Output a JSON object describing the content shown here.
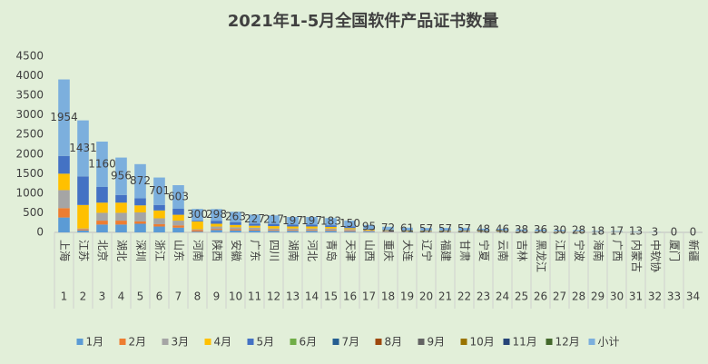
{
  "chart_data": {
    "type": "stacked_bar",
    "title": "2021年1-5月全国软件产品证书数量",
    "categories": [
      "上海",
      "江苏",
      "北京",
      "湖北",
      "深圳",
      "浙江",
      "山东",
      "河南",
      "陕西",
      "安徽",
      "广东",
      "四川",
      "湖南",
      "河北",
      "青岛",
      "天津",
      "山西",
      "重庆",
      "大连",
      "辽宁",
      "福建",
      "甘肃",
      "宁夏",
      "云南",
      "吉林",
      "黑龙江",
      "江西",
      "宁波",
      "海南",
      "广西",
      "内蒙古",
      "中软协",
      "厦门",
      "新疆"
    ],
    "category_numbers": [
      1,
      2,
      3,
      4,
      5,
      6,
      7,
      8,
      9,
      10,
      11,
      12,
      13,
      14,
      15,
      16,
      17,
      18,
      19,
      20,
      21,
      22,
      23,
      24,
      25,
      26,
      27,
      28,
      29,
      30,
      31,
      32,
      33,
      34
    ],
    "ylim": [
      0,
      4500
    ],
    "yticks": [
      0,
      500,
      1000,
      1500,
      2000,
      2500,
      3000,
      3500,
      4000,
      4500
    ],
    "legend": "bottom",
    "label_series": 12,
    "series": [
      {
        "name": "1月",
        "color": "#5b9bd5",
        "values": [
          380,
          50,
          200,
          200,
          220,
          150,
          120,
          20,
          60,
          50,
          50,
          40,
          40,
          40,
          40,
          30,
          20,
          15,
          12,
          12,
          12,
          12,
          10,
          10,
          8,
          8,
          6,
          6,
          4,
          4,
          3,
          1,
          0,
          0
        ]
      },
      {
        "name": "2月",
        "color": "#ed7d31",
        "values": [
          240,
          30,
          100,
          100,
          60,
          60,
          60,
          40,
          30,
          30,
          20,
          20,
          20,
          20,
          20,
          20,
          10,
          10,
          8,
          8,
          8,
          8,
          6,
          6,
          5,
          4,
          4,
          4,
          2,
          2,
          2,
          0,
          0,
          0
        ]
      },
      {
        "name": "3月",
        "color": "#a5a5a5",
        "values": [
          460,
          20,
          200,
          200,
          230,
          150,
          120,
          20,
          60,
          50,
          50,
          40,
          40,
          40,
          40,
          30,
          20,
          15,
          12,
          12,
          12,
          12,
          10,
          10,
          8,
          8,
          6,
          6,
          4,
          4,
          3,
          1,
          0,
          0
        ]
      },
      {
        "name": "4月",
        "color": "#ffc000",
        "values": [
          420,
          600,
          260,
          260,
          180,
          200,
          150,
          200,
          70,
          60,
          50,
          60,
          50,
          50,
          40,
          30,
          20,
          15,
          14,
          12,
          12,
          12,
          10,
          10,
          8,
          8,
          6,
          6,
          4,
          4,
          2,
          0,
          0,
          0
        ]
      },
      {
        "name": "5月",
        "color": "#4472c4",
        "values": [
          454,
          731,
          400,
          196,
          182,
          141,
          153,
          20,
          78,
          73,
          57,
          57,
          47,
          47,
          43,
          40,
          25,
          17,
          15,
          13,
          13,
          13,
          12,
          10,
          9,
          8,
          8,
          6,
          4,
          3,
          3,
          1,
          0,
          0
        ]
      },
      {
        "name": "6月",
        "color": "#70ad47",
        "values": [
          0,
          0,
          0,
          0,
          0,
          0,
          0,
          0,
          0,
          0,
          0,
          0,
          0,
          0,
          0,
          0,
          0,
          0,
          0,
          0,
          0,
          0,
          0,
          0,
          0,
          0,
          0,
          0,
          0,
          0,
          0,
          0,
          0,
          0
        ]
      },
      {
        "name": "7月",
        "color": "#255e91",
        "values": [
          0,
          0,
          0,
          0,
          0,
          0,
          0,
          0,
          0,
          0,
          0,
          0,
          0,
          0,
          0,
          0,
          0,
          0,
          0,
          0,
          0,
          0,
          0,
          0,
          0,
          0,
          0,
          0,
          0,
          0,
          0,
          0,
          0,
          0
        ]
      },
      {
        "name": "8月",
        "color": "#9e480e",
        "values": [
          0,
          0,
          0,
          0,
          0,
          0,
          0,
          0,
          0,
          0,
          0,
          0,
          0,
          0,
          0,
          0,
          0,
          0,
          0,
          0,
          0,
          0,
          0,
          0,
          0,
          0,
          0,
          0,
          0,
          0,
          0,
          0,
          0,
          0
        ]
      },
      {
        "name": "9月",
        "color": "#636363",
        "values": [
          0,
          0,
          0,
          0,
          0,
          0,
          0,
          0,
          0,
          0,
          0,
          0,
          0,
          0,
          0,
          0,
          0,
          0,
          0,
          0,
          0,
          0,
          0,
          0,
          0,
          0,
          0,
          0,
          0,
          0,
          0,
          0,
          0,
          0
        ]
      },
      {
        "name": "10月",
        "color": "#997300",
        "values": [
          0,
          0,
          0,
          0,
          0,
          0,
          0,
          0,
          0,
          0,
          0,
          0,
          0,
          0,
          0,
          0,
          0,
          0,
          0,
          0,
          0,
          0,
          0,
          0,
          0,
          0,
          0,
          0,
          0,
          0,
          0,
          0,
          0,
          0
        ]
      },
      {
        "name": "11月",
        "color": "#264478",
        "values": [
          0,
          0,
          0,
          0,
          0,
          0,
          0,
          0,
          0,
          0,
          0,
          0,
          0,
          0,
          0,
          0,
          0,
          0,
          0,
          0,
          0,
          0,
          0,
          0,
          0,
          0,
          0,
          0,
          0,
          0,
          0,
          0,
          0,
          0
        ]
      },
      {
        "name": "12月",
        "color": "#43682b",
        "values": [
          0,
          0,
          0,
          0,
          0,
          0,
          0,
          0,
          0,
          0,
          0,
          0,
          0,
          0,
          0,
          0,
          0,
          0,
          0,
          0,
          0,
          0,
          0,
          0,
          0,
          0,
          0,
          0,
          0,
          0,
          0,
          0,
          0,
          0
        ]
      },
      {
        "name": "小计",
        "color": "#7cafdd",
        "values": [
          1954,
          1431,
          1160,
          956,
          872,
          701,
          603,
          300,
          298,
          263,
          227,
          217,
          197,
          197,
          183,
          150,
          95,
          72,
          61,
          57,
          57,
          57,
          48,
          46,
          38,
          36,
          30,
          28,
          18,
          17,
          13,
          3,
          0,
          0
        ]
      }
    ]
  }
}
